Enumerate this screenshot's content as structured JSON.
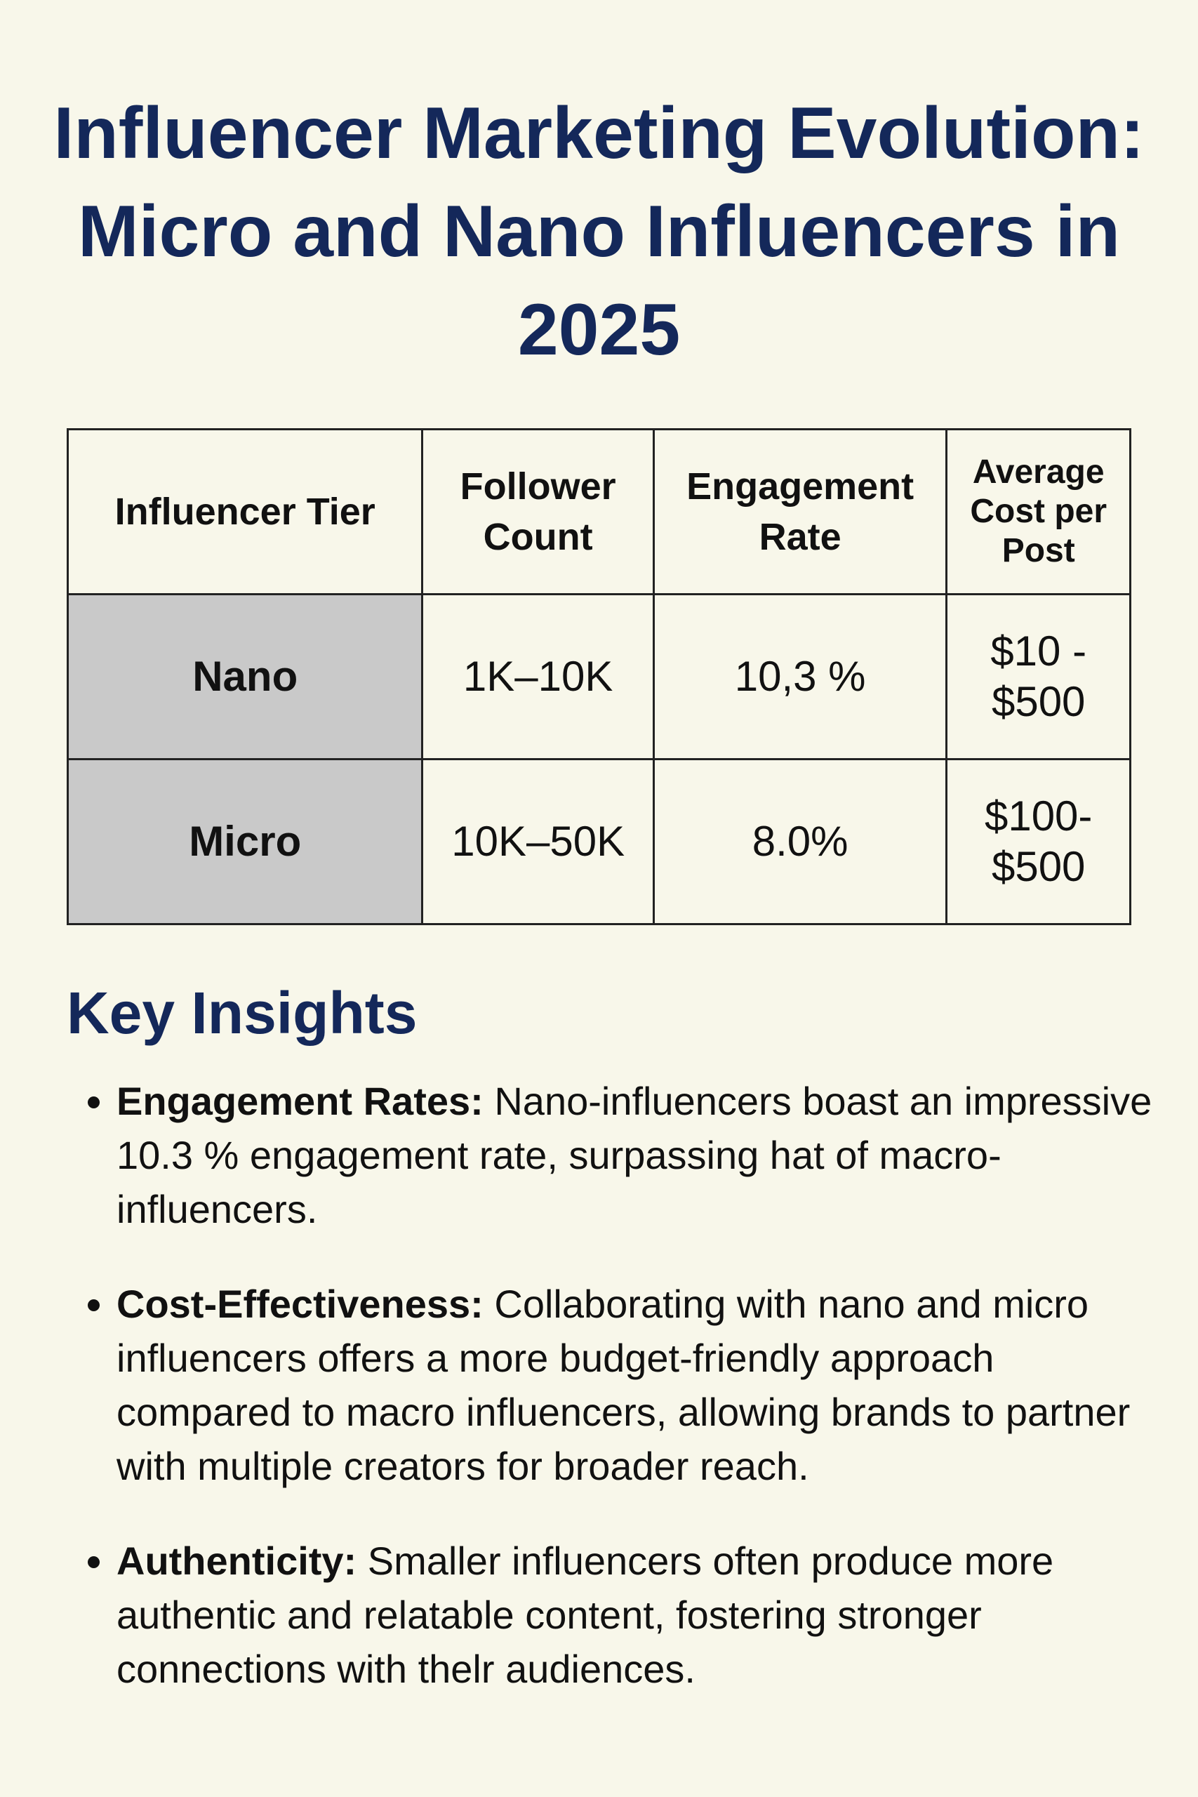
{
  "title": "Influencer Marketing Evolution: Micro and Nano Influencers in 2025",
  "table": {
    "headers": [
      "Influencer Tier",
      "Follower Count",
      "Engagement Rate",
      "Average Cost per Post"
    ],
    "rows": [
      [
        "Nano",
        "1K–10K",
        "10,3 %",
        "$10 - $500"
      ],
      [
        "Micro",
        "10K–50K",
        "8.0%",
        "$100- $500"
      ]
    ]
  },
  "insights": {
    "heading": "Key Insights",
    "items": [
      {
        "label": "Engagement Rates:",
        "text": "Nano-influencers boast an impressive 10.3 % engagement rate, surpassing hat of macro-influencers."
      },
      {
        "label": "Cost-Effectiveness:",
        "text": "Collaborating with nano and micro influencers offers a more budget-friendly approach compared to macro influencers, allowing brands to partner with multiple creators for broader reach."
      },
      {
        "label": "Authenticity:",
        "text": "Smaller influencers often produce more authentic and relatable content, fostering stronger connections with thelr audiences."
      }
    ]
  }
}
